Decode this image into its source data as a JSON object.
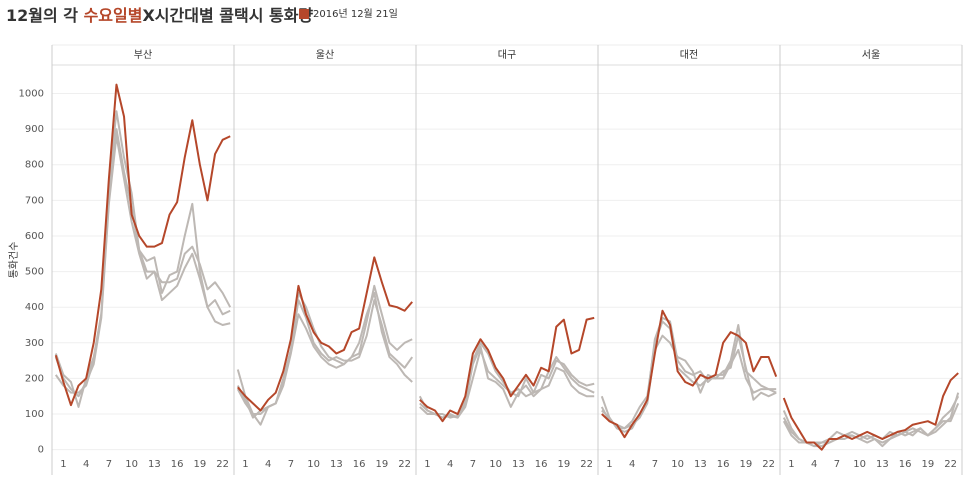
{
  "chart_data": {
    "type": "line",
    "title_parts": [
      "12월의 각 ",
      "수요일별",
      "X시간대별 콜택시 통화량"
    ],
    "title_accent_color": "#b5472a",
    "highlight_name": "2016년 12월 21일",
    "highlight_color": "#b5472a",
    "other_color": "#bdb8b4",
    "ylabel": "통화건수",
    "ylim": [
      -15,
      1080
    ],
    "yticks": [
      0,
      100,
      200,
      300,
      400,
      500,
      600,
      700,
      800,
      900,
      1000
    ],
    "xlim": [
      -0.5,
      23.5
    ],
    "xticks": [
      1,
      4,
      7,
      10,
      13,
      16,
      19,
      22
    ],
    "x": [
      0,
      1,
      2,
      3,
      4,
      5,
      6,
      7,
      8,
      9,
      10,
      11,
      12,
      13,
      14,
      15,
      16,
      17,
      18,
      19,
      20,
      21,
      22,
      23
    ],
    "grid": true,
    "panels": [
      {
        "name": "부산",
        "highlight": [
          265,
          190,
          125,
          180,
          200,
          300,
          450,
          760,
          1025,
          935,
          660,
          600,
          570,
          570,
          580,
          660,
          695,
          820,
          925,
          800,
          700,
          830,
          870,
          880
        ],
        "others": [
          [
            270,
            210,
            190,
            120,
            200,
            260,
            380,
            740,
            950,
            820,
            720,
            560,
            530,
            540,
            440,
            490,
            500,
            600,
            690,
            500,
            400,
            420,
            380,
            390
          ],
          [
            210,
            180,
            160,
            160,
            180,
            250,
            380,
            700,
            900,
            780,
            680,
            560,
            500,
            500,
            470,
            470,
            480,
            550,
            570,
            520,
            450,
            470,
            440,
            400
          ],
          [
            260,
            200,
            170,
            150,
            190,
            240,
            370,
            690,
            880,
            760,
            640,
            550,
            480,
            500,
            420,
            440,
            460,
            510,
            550,
            480,
            400,
            360,
            350,
            355
          ]
        ]
      },
      {
        "name": "울산",
        "highlight": [
          175,
          150,
          130,
          110,
          140,
          160,
          220,
          310,
          460,
          380,
          330,
          300,
          290,
          270,
          280,
          330,
          340,
          440,
          540,
          470,
          405,
          400,
          390,
          415
        ],
        "others": [
          [
            180,
            140,
            90,
            110,
            120,
            130,
            200,
            280,
            440,
            400,
            340,
            290,
            260,
            250,
            240,
            260,
            270,
            360,
            460,
            380,
            300,
            280,
            300,
            310
          ],
          [
            225,
            150,
            100,
            70,
            120,
            130,
            190,
            280,
            420,
            370,
            300,
            270,
            250,
            260,
            250,
            250,
            260,
            320,
            420,
            350,
            270,
            250,
            230,
            260
          ],
          [
            170,
            130,
            100,
            100,
            120,
            130,
            180,
            270,
            380,
            340,
            290,
            260,
            240,
            230,
            240,
            260,
            300,
            380,
            440,
            330,
            260,
            240,
            210,
            190
          ]
        ]
      },
      {
        "name": "대구",
        "highlight": [
          140,
          120,
          110,
          80,
          110,
          100,
          150,
          270,
          310,
          280,
          230,
          200,
          150,
          180,
          210,
          180,
          230,
          220,
          345,
          365,
          270,
          280,
          365,
          370
        ],
        "others": [
          [
            150,
            110,
            100,
            90,
            95,
            90,
            140,
            250,
            300,
            270,
            220,
            190,
            160,
            150,
            200,
            160,
            210,
            200,
            250,
            240,
            210,
            190,
            180,
            185
          ],
          [
            130,
            110,
            100,
            100,
            90,
            95,
            130,
            240,
            290,
            200,
            190,
            170,
            120,
            160,
            180,
            150,
            170,
            220,
            260,
            230,
            200,
            180,
            170,
            160
          ],
          [
            120,
            100,
            100,
            90,
            100,
            90,
            120,
            200,
            280,
            220,
            200,
            180,
            160,
            170,
            150,
            160,
            170,
            180,
            230,
            220,
            180,
            160,
            150,
            150
          ]
        ]
      },
      {
        "name": "대전",
        "highlight": [
          100,
          80,
          70,
          35,
          70,
          100,
          140,
          270,
          390,
          350,
          220,
          190,
          180,
          210,
          200,
          210,
          300,
          330,
          320,
          300,
          220,
          260,
          260,
          205
        ],
        "others": [
          [
            150,
            90,
            60,
            50,
            60,
            100,
            140,
            310,
            370,
            360,
            250,
            220,
            210,
            220,
            190,
            210,
            210,
            250,
            350,
            220,
            200,
            180,
            170,
            170
          ],
          [
            120,
            80,
            70,
            60,
            80,
            120,
            150,
            300,
            360,
            340,
            230,
            210,
            190,
            180,
            200,
            200,
            220,
            230,
            320,
            230,
            140,
            160,
            150,
            160
          ],
          [
            110,
            90,
            60,
            60,
            70,
            90,
            130,
            280,
            320,
            300,
            260,
            250,
            220,
            160,
            210,
            200,
            200,
            240,
            280,
            200,
            160,
            170,
            170,
            160
          ]
        ]
      },
      {
        "name": "서울",
        "highlight": [
          145,
          90,
          55,
          20,
          20,
          0,
          30,
          30,
          40,
          30,
          40,
          50,
          40,
          30,
          40,
          50,
          55,
          70,
          75,
          80,
          70,
          150,
          195,
          215
        ],
        "others": [
          [
            110,
            60,
            30,
            20,
            20,
            20,
            20,
            30,
            40,
            50,
            40,
            30,
            40,
            30,
            50,
            40,
            50,
            40,
            60,
            40,
            50,
            70,
            90,
            160
          ],
          [
            90,
            50,
            30,
            20,
            10,
            10,
            20,
            30,
            30,
            40,
            30,
            20,
            30,
            10,
            30,
            50,
            40,
            50,
            60,
            40,
            60,
            90,
            110,
            150
          ],
          [
            80,
            40,
            20,
            20,
            10,
            20,
            30,
            50,
            40,
            40,
            30,
            40,
            30,
            20,
            30,
            40,
            50,
            60,
            50,
            40,
            60,
            80,
            80,
            130
          ]
        ]
      }
    ]
  }
}
